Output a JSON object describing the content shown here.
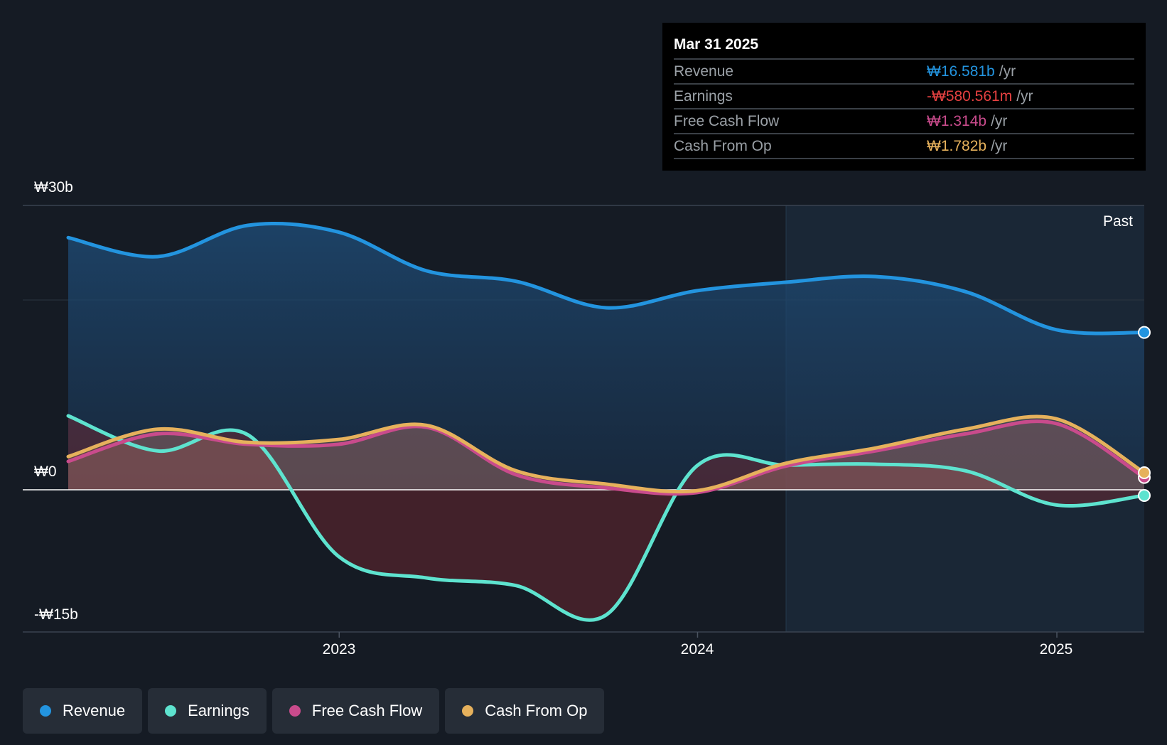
{
  "tooltip": {
    "date": "Mar 31 2025",
    "rows": [
      {
        "name": "Revenue",
        "value": "₩16.581b",
        "unit": "/yr",
        "color": "#2394df"
      },
      {
        "name": "Earnings",
        "value": "-₩580.561m",
        "unit": "/yr",
        "color": "#e64141"
      },
      {
        "name": "Free Cash Flow",
        "value": "₩1.314b",
        "unit": "/yr",
        "color": "#c94b8c"
      },
      {
        "name": "Cash From Op",
        "value": "₩1.782b",
        "unit": "/yr",
        "color": "#e6b15c"
      }
    ]
  },
  "past_label": "Past",
  "legend": [
    {
      "label": "Revenue",
      "color": "#2394df"
    },
    {
      "label": "Earnings",
      "color": "#5ee3cf"
    },
    {
      "label": "Free Cash Flow",
      "color": "#c94b8c"
    },
    {
      "label": "Cash From Op",
      "color": "#e6b15c"
    }
  ],
  "chart_data": {
    "type": "line",
    "y_tick_labels": [
      "₩30b",
      "₩0",
      "-₩15b"
    ],
    "x_tick_labels": [
      "2023",
      "2024",
      "2025"
    ],
    "ylim": [
      -15,
      30
    ],
    "y_unit": "₩ billions",
    "x": [
      "2022-03-31",
      "2022-06-30",
      "2022-09-30",
      "2022-12-31",
      "2023-03-31",
      "2023-06-30",
      "2023-09-30",
      "2023-12-31",
      "2024-03-31",
      "2024-06-30",
      "2024-09-30",
      "2024-12-31",
      "2025-03-31"
    ],
    "series": [
      {
        "name": "Revenue",
        "color": "#2394df",
        "values": [
          26.6,
          24.6,
          27.9,
          27.2,
          23.1,
          22.0,
          19.2,
          21.0,
          21.9,
          22.5,
          20.9,
          16.9,
          16.6
        ]
      },
      {
        "name": "Earnings",
        "color": "#5ee3cf",
        "values": [
          7.8,
          4.1,
          5.8,
          -7.0,
          -9.3,
          -10.1,
          -13.2,
          2.5,
          2.6,
          2.7,
          2.0,
          -1.6,
          -0.6
        ]
      },
      {
        "name": "Free Cash Flow",
        "color": "#c94b8c",
        "values": [
          3.0,
          5.9,
          4.8,
          4.8,
          6.6,
          1.6,
          0.2,
          -0.3,
          2.5,
          4.1,
          5.9,
          7.0,
          1.3
        ]
      },
      {
        "name": "Cash From Op",
        "color": "#e6b15c",
        "values": [
          3.5,
          6.4,
          5.0,
          5.3,
          6.8,
          2.0,
          0.6,
          -0.1,
          2.8,
          4.4,
          6.4,
          7.5,
          1.8
        ]
      }
    ]
  }
}
